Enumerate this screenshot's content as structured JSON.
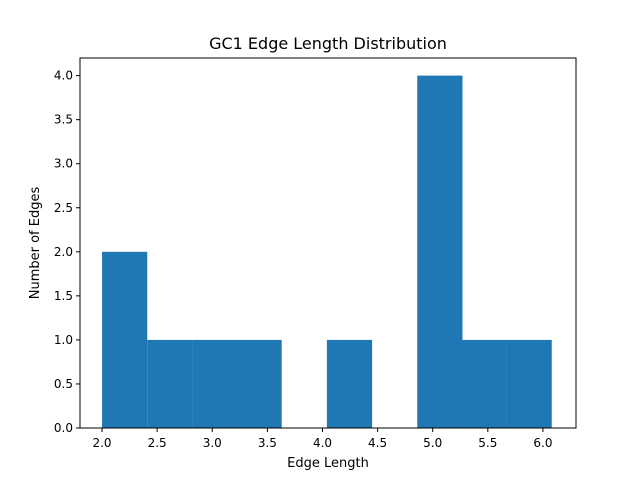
{
  "chart_data": {
    "type": "bar",
    "title": "GC1 Edge Length Distribution",
    "xlabel": "Edge Length",
    "ylabel": "Number of Edges",
    "xlim": [
      1.8,
      6.3
    ],
    "ylim": [
      0,
      4.2
    ],
    "grid": false,
    "legend": "none",
    "bar_color": "#1f77b4",
    "bins": [
      {
        "x0": 2.0,
        "x1": 2.41,
        "value": 2
      },
      {
        "x0": 2.41,
        "x1": 2.82,
        "value": 1
      },
      {
        "x0": 2.82,
        "x1": 3.22,
        "value": 1
      },
      {
        "x0": 3.22,
        "x1": 3.63,
        "value": 1
      },
      {
        "x0": 3.63,
        "x1": 4.04,
        "value": 0
      },
      {
        "x0": 4.04,
        "x1": 4.45,
        "value": 1
      },
      {
        "x0": 4.45,
        "x1": 4.86,
        "value": 0
      },
      {
        "x0": 4.86,
        "x1": 5.27,
        "value": 4
      },
      {
        "x0": 5.27,
        "x1": 5.67,
        "value": 1
      },
      {
        "x0": 5.67,
        "x1": 6.08,
        "value": 1
      }
    ],
    "x_ticks": [
      2.0,
      2.5,
      3.0,
      3.5,
      4.0,
      4.5,
      5.0,
      5.5,
      6.0
    ],
    "x_tick_labels": [
      "2.0",
      "2.5",
      "3.0",
      "3.5",
      "4.0",
      "4.5",
      "5.0",
      "5.5",
      "6.0"
    ],
    "y_ticks": [
      0.0,
      0.5,
      1.0,
      1.5,
      2.0,
      2.5,
      3.0,
      3.5,
      4.0
    ],
    "y_tick_labels": [
      "0.0",
      "0.5",
      "1.0",
      "1.5",
      "2.0",
      "2.5",
      "3.0",
      "3.5",
      "4.0"
    ]
  }
}
